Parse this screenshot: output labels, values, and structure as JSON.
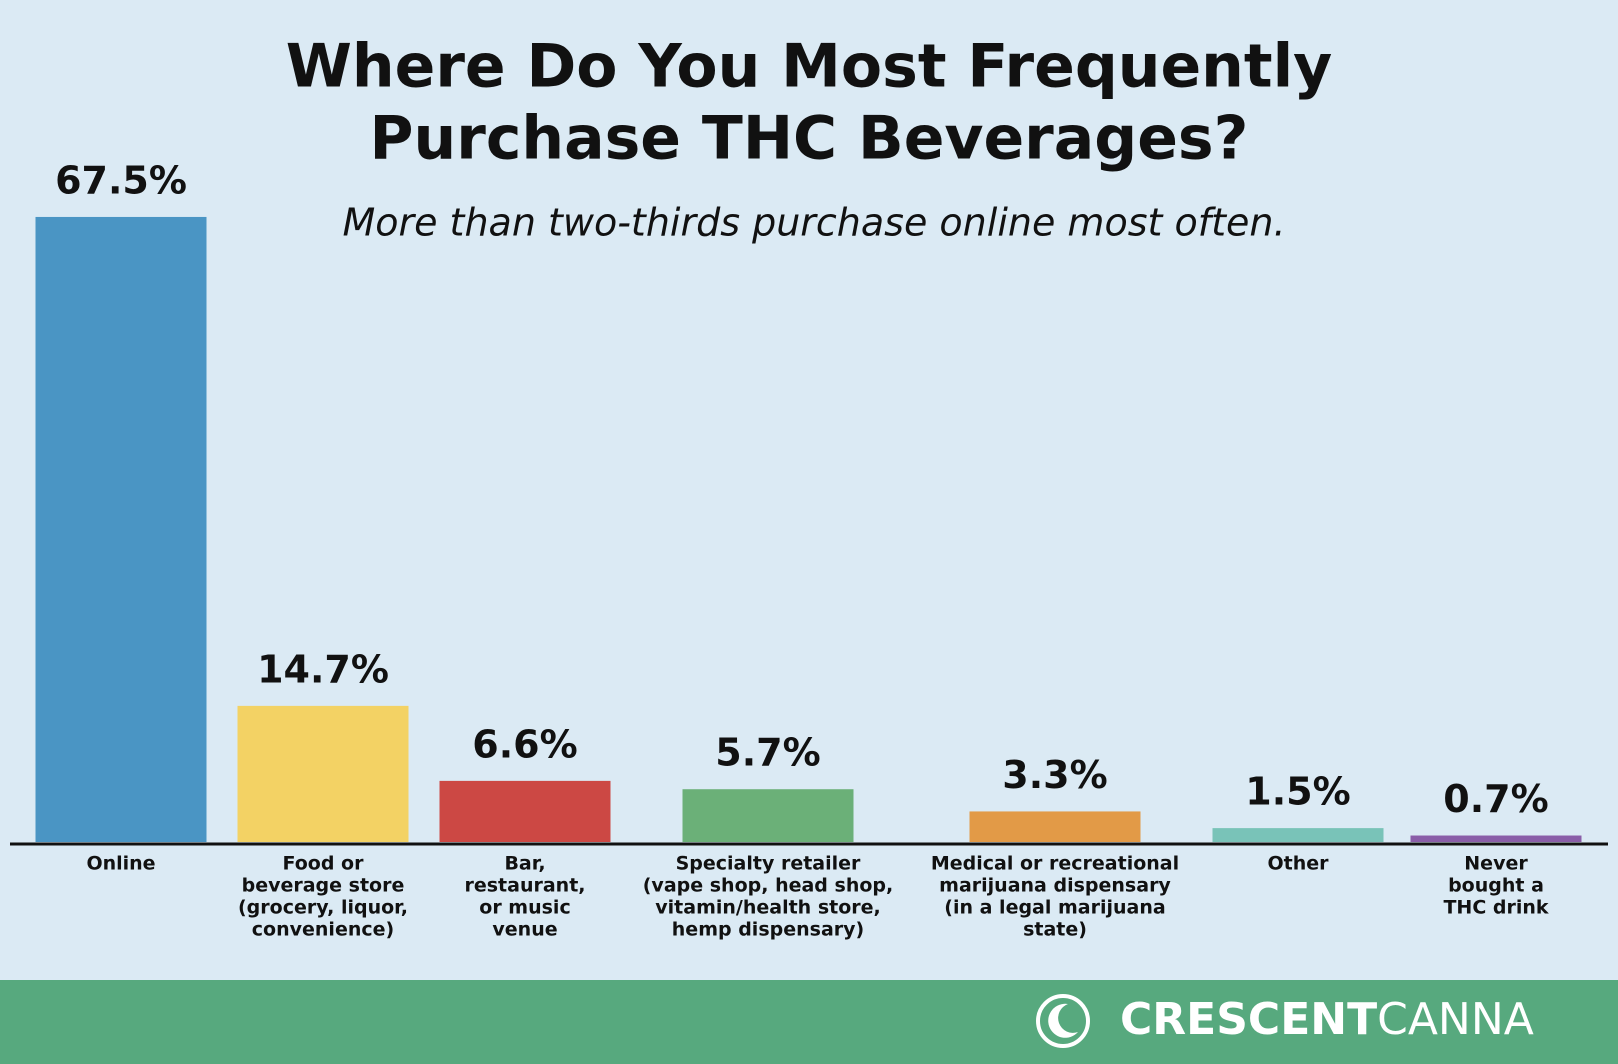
{
  "chart_data": {
    "type": "bar",
    "title": [
      "Where Do You Most Frequently",
      "Purchase THC Beverages?"
    ],
    "subtitle": "More than two-thirds purchase online most often.",
    "categories": [
      [
        "Online"
      ],
      [
        "Food or",
        "beverage store",
        "(grocery, liquor,",
        "convenience)"
      ],
      [
        "Bar,",
        "restaurant,",
        "or music",
        "venue"
      ],
      [
        "Specialty retailer",
        "(vape shop, head shop,",
        "vitamin/health store,",
        "hemp dispensary)"
      ],
      [
        "Medical or recreational",
        "marijuana dispensary",
        "(in a legal marijuana",
        "state)"
      ],
      [
        "Other"
      ],
      [
        "Never",
        "bought a",
        "THC drink"
      ]
    ],
    "values": [
      67.5,
      14.7,
      6.6,
      5.7,
      3.3,
      1.5,
      0.7
    ],
    "value_labels": [
      "67.5%",
      "14.7%",
      "6.6%",
      "5.7%",
      "3.3%",
      "1.5%",
      "0.7%"
    ],
    "colors": [
      "#4a95c4",
      "#f3d264",
      "#cc4844",
      "#6bb078",
      "#e29a47",
      "#79c3b8",
      "#8a5ea8"
    ]
  },
  "footer": {
    "brand_bold": "CRESCENT",
    "brand_light": "CANNA"
  }
}
